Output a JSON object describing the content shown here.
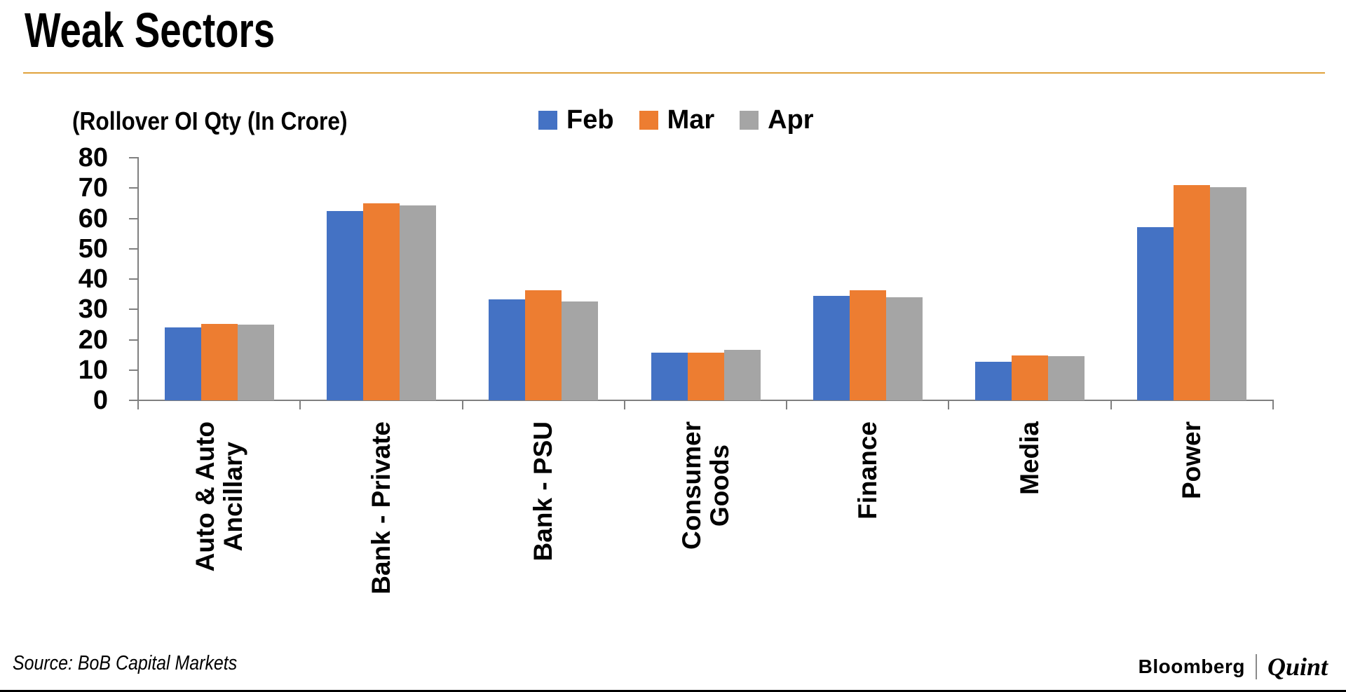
{
  "chart_data": {
    "type": "bar",
    "title": "Weak Sectors",
    "ylabel": "(Rollover OI Qty (In Crore)",
    "categories": [
      [
        "Auto & Auto",
        "Ancillary"
      ],
      [
        "Bank - Private"
      ],
      [
        "Bank - PSU"
      ],
      [
        "Consumer",
        "Goods"
      ],
      [
        "Finance"
      ],
      [
        "Media"
      ],
      [
        "Power"
      ]
    ],
    "series": [
      {
        "name": "Feb",
        "color": "#4472C4",
        "values": [
          24.0,
          62.5,
          33.3,
          15.8,
          34.5,
          12.8,
          57.0
        ]
      },
      {
        "name": "Mar",
        "color": "#ED7D31",
        "values": [
          25.2,
          65.0,
          36.3,
          15.7,
          36.3,
          14.9,
          71.0
        ]
      },
      {
        "name": "Apr",
        "color": "#A5A5A5",
        "values": [
          24.9,
          64.2,
          32.7,
          16.7,
          34.1,
          14.5,
          70.3
        ]
      }
    ],
    "ylim": [
      0,
      80
    ],
    "yticks": [
      0,
      10,
      20,
      30,
      40,
      50,
      60,
      70,
      80
    ],
    "grid": false,
    "legend_position": "top-center",
    "axis_color": "#808080"
  },
  "header": {
    "divider_color": "#E0A23C"
  },
  "footer": {
    "source": "Source: BoB Capital Markets",
    "brand": {
      "primary": "Bloomberg",
      "separator": "|",
      "secondary": "Quint"
    }
  }
}
